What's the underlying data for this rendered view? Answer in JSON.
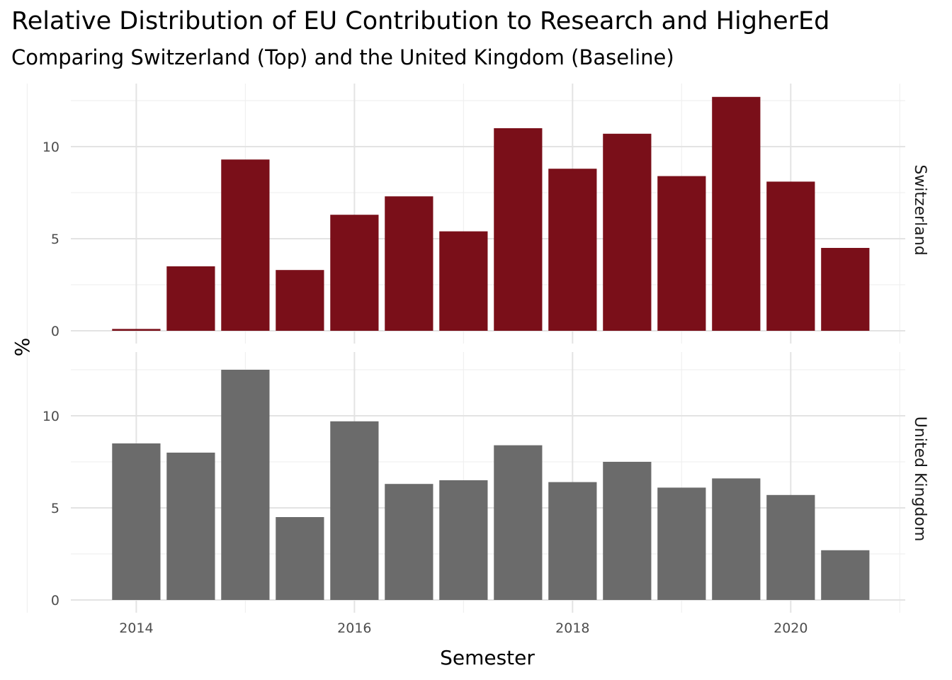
{
  "chart_data": {
    "type": "bar",
    "title": "Relative Distribution of EU Contribution to Research and HigherEd",
    "subtitle": "Comparing Switzerland (Top) and the United Kingdom (Baseline)",
    "xlabel": "Semester",
    "ylabel": "%",
    "x_ticks": [
      "2014",
      "2016",
      "2018",
      "2020"
    ],
    "y_ticks": [
      "0",
      "5",
      "10"
    ],
    "xlim": [
      2013.4,
      2021.05
    ],
    "ylim": [
      0,
      13
    ],
    "grid": true,
    "x": [
      2014.0,
      2014.5,
      2015.0,
      2015.5,
      2016.0,
      2016.5,
      2017.0,
      2017.5,
      2018.0,
      2018.5,
      2019.0,
      2019.5,
      2020.0,
      2020.5
    ],
    "panels": [
      {
        "name": "Switzerland",
        "color": "#7a0f19",
        "values": [
          0.1,
          3.5,
          9.3,
          3.3,
          6.3,
          7.3,
          5.4,
          11.0,
          8.8,
          10.7,
          8.4,
          12.7,
          8.1,
          4.5
        ]
      },
      {
        "name": "United Kingdom",
        "color": "#6b6b6b",
        "values": [
          8.5,
          8.0,
          12.5,
          4.5,
          9.7,
          6.3,
          6.5,
          8.4,
          6.4,
          7.5,
          6.1,
          6.6,
          5.7,
          2.7
        ]
      }
    ]
  }
}
